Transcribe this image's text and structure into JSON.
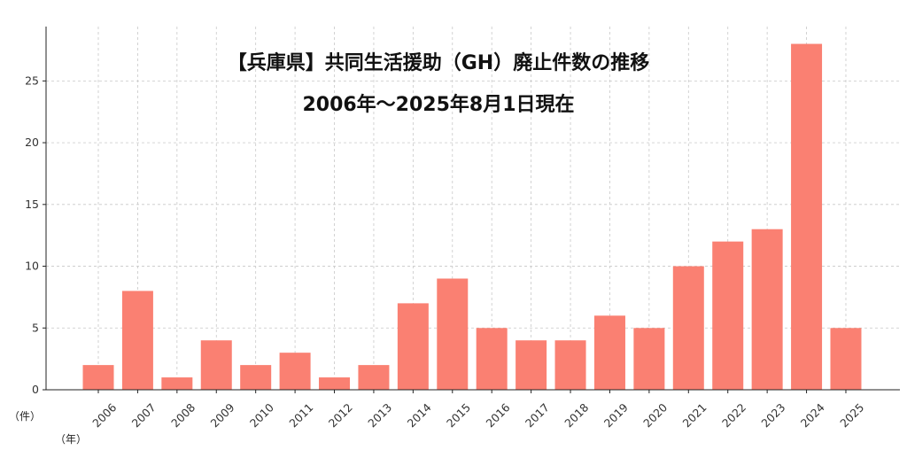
{
  "chart_data": {
    "type": "bar",
    "title": "【兵庫県】共同生活援助（GH）廃止件数の推移",
    "subtitle": "2006年～2025年8月1日現在",
    "ylabel": "（件）",
    "xlabel": "（年）",
    "categories": [
      "2006",
      "2007",
      "2008",
      "2009",
      "2010",
      "2011",
      "2012",
      "2013",
      "2014",
      "2015",
      "2016",
      "2017",
      "2018",
      "2019",
      "2020",
      "2021",
      "2022",
      "2023",
      "2024",
      "2025"
    ],
    "values": [
      2,
      8,
      1,
      4,
      2,
      3,
      1,
      2,
      7,
      9,
      5,
      4,
      4,
      6,
      5,
      10,
      12,
      13,
      28,
      5
    ],
    "ylim": [
      0,
      29.4
    ],
    "yticks": [
      0,
      5,
      10,
      15,
      20,
      25
    ],
    "grid": true,
    "bar_color": "#fa8072"
  }
}
